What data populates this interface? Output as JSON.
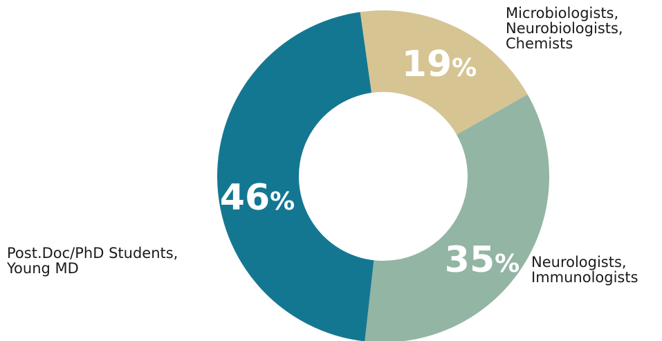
{
  "chart_data": {
    "type": "pie",
    "variant": "donut",
    "title": "",
    "slices": [
      {
        "label_lines": [
          "Microbiologists,",
          "Neurobiologists,",
          "Chemists"
        ],
        "value": 19,
        "value_text": "19",
        "unit": "%",
        "color": "#D6C493"
      },
      {
        "label_lines": [
          "Neurologists,",
          "Immunologists"
        ],
        "value": 35,
        "value_text": "35",
        "unit": "%",
        "color": "#93B5A4"
      },
      {
        "label_lines": [
          "Post.Doc/PhD Students,",
          "Young MD"
        ],
        "value": 46,
        "value_text": "46",
        "unit": "%",
        "color": "#147792"
      }
    ]
  }
}
